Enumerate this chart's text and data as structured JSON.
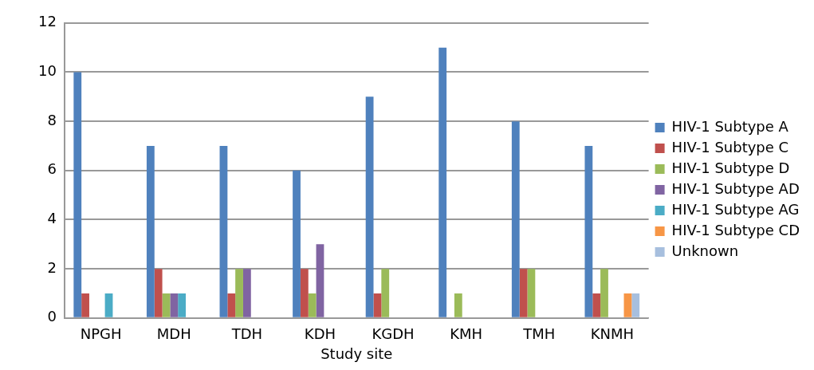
{
  "chart_data": {
    "type": "bar",
    "xlabel": "Study site",
    "categories": [
      "NPGH",
      "MDH",
      "TDH",
      "KDH",
      "KGDH",
      "KMH",
      "TMH",
      "KNMH"
    ],
    "series": [
      {
        "name": "HIV-1 Subtype A",
        "color": "#4f81bd",
        "values": [
          10,
          7,
          7,
          6,
          9,
          11,
          8,
          7
        ]
      },
      {
        "name": "HIV-1 Subtype C",
        "color": "#c0504d",
        "values": [
          1,
          2,
          1,
          2,
          1,
          0,
          2,
          1
        ]
      },
      {
        "name": "HIV-1 Subtype D",
        "color": "#9bbb59",
        "values": [
          0,
          1,
          2,
          1,
          2,
          1,
          2,
          2
        ]
      },
      {
        "name": "HIV-1 Subtype AD",
        "color": "#8064a2",
        "values": [
          0,
          1,
          2,
          3,
          0,
          0,
          0,
          0
        ]
      },
      {
        "name": "HIV-1 Subtype AG",
        "color": "#4bacc6",
        "values": [
          1,
          1,
          0,
          0,
          0,
          0,
          0,
          0
        ]
      },
      {
        "name": "HIV-1 Subtype CD",
        "color": "#f79646",
        "values": [
          0,
          0,
          0,
          0,
          0,
          0,
          0,
          1
        ]
      },
      {
        "name": "Unknown",
        "color": "#a7bfde",
        "values": [
          0,
          0,
          0,
          0,
          0,
          0,
          0,
          1
        ]
      }
    ],
    "ylim": [
      0,
      12
    ],
    "yticks": [
      0,
      2,
      4,
      6,
      8,
      10,
      12
    ],
    "grid": "y",
    "legend": "right"
  }
}
